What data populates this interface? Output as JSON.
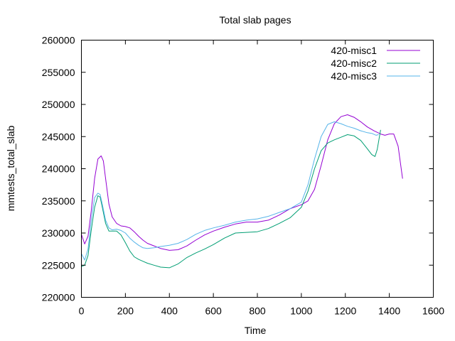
{
  "chart_data": {
    "type": "line",
    "title": "Total slab pages",
    "xlabel": "Time",
    "ylabel": "mmtests_total_slab",
    "xlim": [
      0,
      1600
    ],
    "ylim": [
      220000,
      260000
    ],
    "x_ticks": [
      0,
      200,
      400,
      600,
      800,
      1000,
      1200,
      1400,
      1600
    ],
    "y_ticks": [
      220000,
      225000,
      230000,
      235000,
      240000,
      245000,
      250000,
      255000,
      260000
    ],
    "grid": false,
    "legend_position": "top-right",
    "series": [
      {
        "name": "420-misc1",
        "color": "#9400d3",
        "x": [
          0,
          15,
          30,
          45,
          60,
          75,
          90,
          100,
          110,
          125,
          140,
          160,
          180,
          200,
          220,
          240,
          260,
          280,
          300,
          330,
          360,
          400,
          440,
          480,
          520,
          560,
          600,
          650,
          700,
          750,
          800,
          850,
          900,
          950,
          1000,
          1030,
          1060,
          1090,
          1120,
          1150,
          1180,
          1210,
          1240,
          1270,
          1300,
          1330,
          1360,
          1380,
          1400,
          1420,
          1440,
          1460
        ],
        "values": [
          229800,
          228300,
          229500,
          233500,
          238500,
          241500,
          242000,
          241200,
          238500,
          234500,
          232500,
          231500,
          231100,
          231000,
          230800,
          230200,
          229500,
          228900,
          228400,
          228000,
          227600,
          227300,
          227400,
          228000,
          228900,
          229700,
          230300,
          230900,
          231400,
          231700,
          231700,
          232000,
          232800,
          233800,
          234400,
          235000,
          236800,
          240500,
          244500,
          247000,
          248100,
          248400,
          248000,
          247300,
          246500,
          245900,
          245400,
          245200,
          245400,
          245400,
          243500,
          238500
        ]
      },
      {
        "name": "420-misc2",
        "color": "#009e73",
        "x": [
          0,
          15,
          30,
          45,
          60,
          75,
          85,
          95,
          110,
          125,
          140,
          160,
          180,
          200,
          220,
          240,
          260,
          280,
          300,
          330,
          360,
          400,
          440,
          480,
          520,
          560,
          600,
          650,
          700,
          750,
          800,
          850,
          900,
          950,
          1000,
          1030,
          1060,
          1090,
          1120,
          1150,
          1180,
          1210,
          1240,
          1270,
          1300,
          1320,
          1335,
          1345,
          1360
        ],
        "values": [
          224800,
          225000,
          226500,
          230500,
          234000,
          235800,
          235600,
          234000,
          231500,
          230300,
          230300,
          230300,
          229700,
          228500,
          227200,
          226300,
          225900,
          225600,
          225300,
          225000,
          224700,
          224600,
          225200,
          226200,
          226900,
          227500,
          228200,
          229200,
          230000,
          230100,
          230200,
          230700,
          231500,
          232400,
          234000,
          236500,
          240000,
          242800,
          244000,
          244500,
          244900,
          245300,
          245100,
          244400,
          243100,
          242200,
          241900,
          243000,
          246000
        ]
      },
      {
        "name": "420-misc3",
        "color": "#56b4e9",
        "x": [
          0,
          15,
          30,
          45,
          60,
          75,
          85,
          95,
          110,
          125,
          140,
          160,
          180,
          200,
          220,
          240,
          260,
          280,
          300,
          330,
          360,
          400,
          440,
          480,
          520,
          560,
          600,
          650,
          700,
          750,
          800,
          850,
          900,
          950,
          1000,
          1030,
          1060,
          1090,
          1120,
          1150,
          1180,
          1210,
          1240,
          1270,
          1300,
          1320,
          1340,
          1350
        ],
        "values": [
          226800,
          225800,
          227500,
          232000,
          235500,
          236200,
          236000,
          234500,
          232000,
          230800,
          230500,
          230600,
          230400,
          230000,
          229200,
          228600,
          228100,
          227700,
          227600,
          227700,
          227900,
          228100,
          228400,
          229000,
          229800,
          230400,
          230800,
          231200,
          231700,
          232000,
          232200,
          232600,
          233200,
          233800,
          234800,
          237500,
          241500,
          245000,
          246900,
          247300,
          247000,
          246600,
          246300,
          245900,
          245600,
          245500,
          245200,
          245300
        ]
      }
    ]
  }
}
